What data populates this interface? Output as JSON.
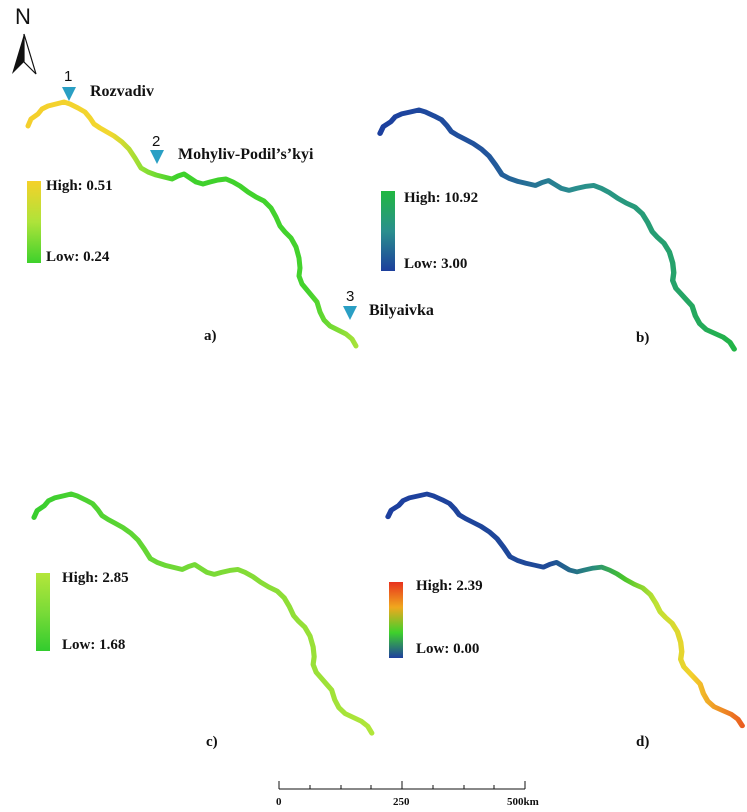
{
  "north_arrow": {
    "label": "N"
  },
  "sites": [
    {
      "number": "1",
      "name": "Rozvadiv",
      "marker_color": "#2a9fc4"
    },
    {
      "number": "2",
      "name": "Mohyliv-Podil’s’kyi",
      "marker_color": "#2a9fc4"
    },
    {
      "number": "3",
      "name": "Bilyaivka",
      "marker_color": "#2a9fc4"
    }
  ],
  "panels": [
    {
      "label": "a)",
      "legend": {
        "high_text": "High: 0.51",
        "low_text": "Low: 0.24",
        "high_value": 0.51,
        "low_value": 0.24
      },
      "gradient": [
        "#f5d129",
        "#aee33a",
        "#3ed12c"
      ]
    },
    {
      "label": "b)",
      "legend": {
        "high_text": "High: 10.92",
        "low_text": "Low: 3.00",
        "high_value": 10.92,
        "low_value": 3.0
      },
      "gradient": [
        "#20b840",
        "#2a8f8e",
        "#1d3f9c"
      ]
    },
    {
      "label": "c)",
      "legend": {
        "high_text": "High: 2.85",
        "low_text": "Low: 1.68",
        "high_value": 2.85,
        "low_value": 1.68
      },
      "gradient": [
        "#b4e63a",
        "#7adb38",
        "#32cc2e"
      ]
    },
    {
      "label": "d)",
      "legend": {
        "high_text": "High: 2.39",
        "low_text": "Low: 0.00",
        "high_value": 2.39,
        "low_value": 0.0
      },
      "gradient": [
        "#e8321e",
        "#f0a81e",
        "#3ed12c",
        "#1f3f9e"
      ]
    }
  ],
  "scale_bar": {
    "ticks": [
      "0",
      "250",
      "500km"
    ]
  }
}
